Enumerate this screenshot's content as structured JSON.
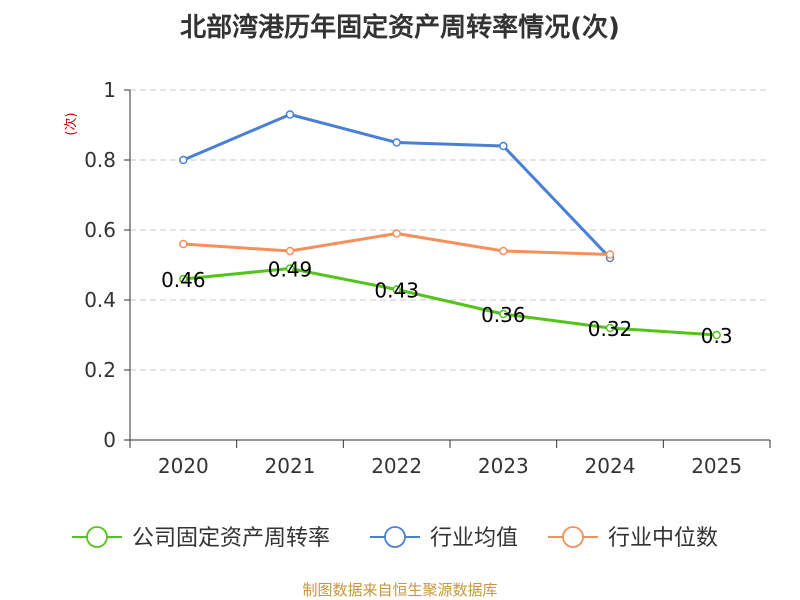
{
  "chart_data": {
    "type": "line",
    "title": "北部湾港历年固定资产周转率情况(次)",
    "ylabel": "(次)",
    "xlabel": "",
    "categories": [
      "2020",
      "2021",
      "2022",
      "2023",
      "2024",
      "2025"
    ],
    "ylim": [
      0,
      1
    ],
    "yticks": [
      "0",
      "0.2",
      "0.4",
      "0.6",
      "0.8",
      "1"
    ],
    "grid": true,
    "legend_position": "bottom",
    "series": [
      {
        "name": "公司固定资产周转率",
        "color": "#52c41a",
        "values": [
          0.46,
          0.49,
          0.43,
          0.36,
          0.32,
          0.3
        ],
        "labels": [
          "0.46",
          "0.49",
          "0.43",
          "0.36",
          "0.32",
          "0.3"
        ]
      },
      {
        "name": "行业均值",
        "color": "#4a7fd6",
        "values": [
          0.8,
          0.93,
          0.85,
          0.84,
          0.52,
          null
        ]
      },
      {
        "name": "行业中位数",
        "color": "#f58f5c",
        "values": [
          0.56,
          0.54,
          0.59,
          0.54,
          0.53,
          null
        ]
      }
    ],
    "source": "制图数据来自恒生聚源数据库"
  }
}
